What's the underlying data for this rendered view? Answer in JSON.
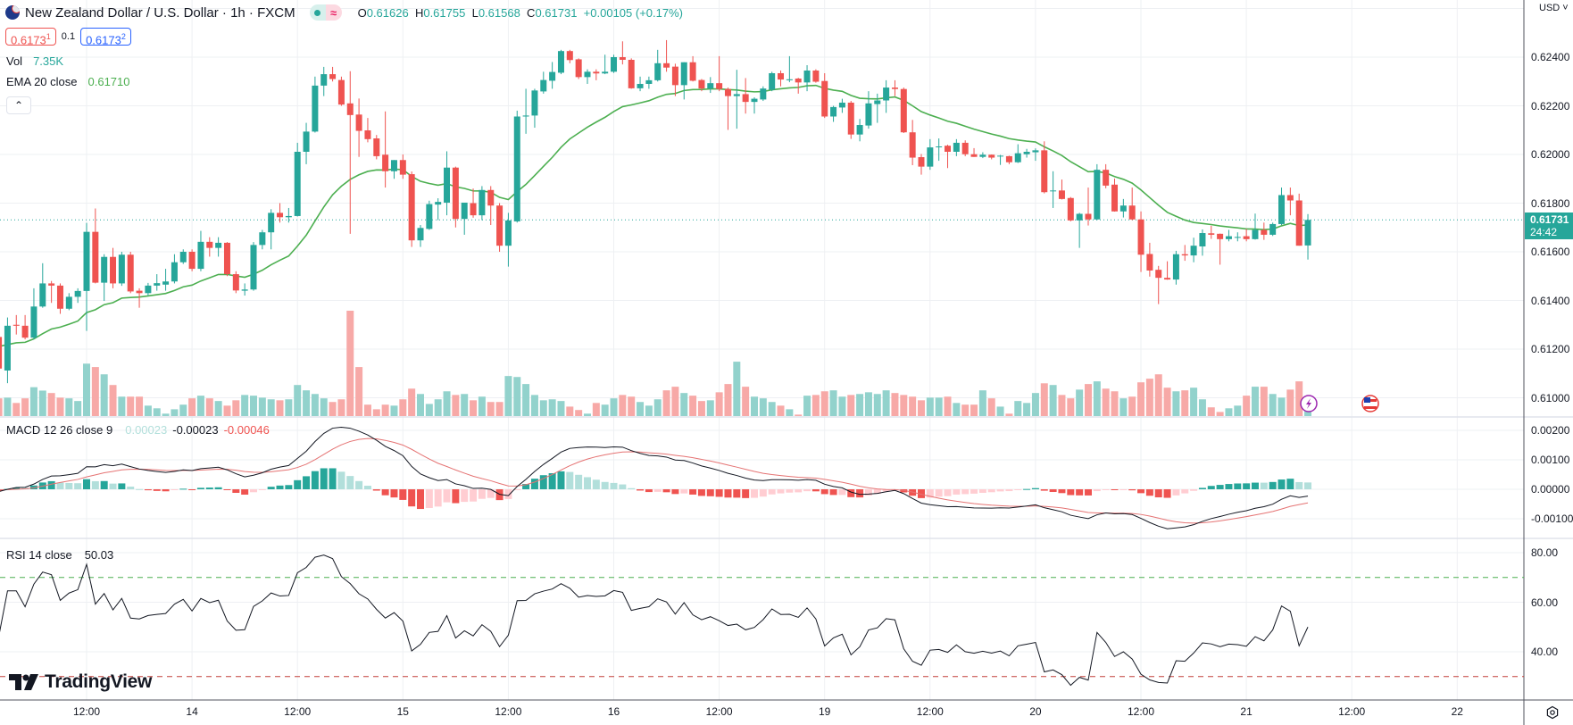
{
  "header": {
    "symbol_title": "New Zealand Dollar / U.S. Dollar · 1h · FXCM",
    "status_icon": "market-open-dot",
    "ohlc": {
      "o_label": "O",
      "o": "0.61626",
      "h_label": "H",
      "h": "0.61755",
      "l_label": "L",
      "l": "0.61568",
      "c_label": "C",
      "c": "0.61731",
      "change": "+0.00105 (+0.17%)"
    },
    "sell_price": "0.6173",
    "sell_sup": "1",
    "spread": "0.1",
    "buy_price": "0.6173",
    "buy_sup": "2"
  },
  "legends": {
    "vol_label": "Vol",
    "vol_value": "7.35K",
    "ema_label": "EMA 20 close",
    "ema_value": "0.61710",
    "macd_label": "MACD 12 26 close 9",
    "macd_hist": "0.00023",
    "macd_value": "-0.00023",
    "macd_signal": "-0.00046",
    "rsi_label": "RSI 14 close",
    "rsi_value": "50.03",
    "collapse_icon": "chevron-up-icon"
  },
  "price_axis": {
    "currency": "USD",
    "ticks": [
      "0.62400",
      "0.62200",
      "0.62000",
      "0.61800",
      "0.61600",
      "0.61400",
      "0.61200",
      "0.61000"
    ],
    "last_price": "0.61731",
    "countdown": "24:42"
  },
  "macd_axis": {
    "ticks": [
      "0.00200",
      "0.00100",
      "0.00000",
      "-0.00100"
    ]
  },
  "rsi_axis": {
    "ticks": [
      "80.00",
      "60.00",
      "40.00"
    ],
    "upper_band": 70,
    "lower_band": 30
  },
  "time_axis": {
    "labels": [
      "12:00",
      "14",
      "12:00",
      "15",
      "12:00",
      "16",
      "12:00",
      "19",
      "12:00",
      "20",
      "12:00",
      "21",
      "12:00",
      "22"
    ]
  },
  "branding": {
    "logo_text": "TradingView"
  },
  "colors": {
    "up": "#26a69a",
    "down": "#ef5350",
    "ema": "#4caf50",
    "macd": "#131722",
    "signal": "#e57373",
    "rsi": "#131722"
  },
  "chart_data": {
    "type": "candlestick",
    "title": "New Zealand Dollar / U.S. Dollar · 1h · FXCM",
    "ylim": [
      0.6095,
      0.6263
    ],
    "columns": [
      "open",
      "high",
      "low",
      "close",
      "volume_k"
    ],
    "indicators": [
      "EMA 20 close",
      "Vol",
      "MACD 12 26 close 9",
      "RSI 14 close"
    ],
    "bars": [
      [
        0.6125,
        0.6129,
        0.611,
        0.6112,
        7.3
      ],
      [
        0.61112,
        0.6133,
        0.6106,
        0.61296,
        7.6
      ],
      [
        0.613,
        0.6134,
        0.6126,
        0.61296,
        5.4
      ],
      [
        0.61296,
        0.6134,
        0.6124,
        0.61247,
        7.3
      ],
      [
        0.61247,
        0.6145,
        0.6124,
        0.61375,
        11.9
      ],
      [
        0.61375,
        0.61553,
        0.6137,
        0.6147,
        10.5
      ],
      [
        0.6147,
        0.6148,
        0.6139,
        0.61461,
        9.5
      ],
      [
        0.61461,
        0.6147,
        0.61345,
        0.61366,
        7.6
      ],
      [
        0.61366,
        0.6143,
        0.6136,
        0.61415,
        7.3
      ],
      [
        0.61415,
        0.6145,
        0.6139,
        0.61439,
        6.2
      ],
      [
        0.61439,
        0.61719,
        0.61275,
        0.61682,
        21.6
      ],
      [
        0.61682,
        0.61778,
        0.6147,
        0.61473,
        20.2
      ],
      [
        0.61473,
        0.6159,
        0.61398,
        0.61579,
        17.2
      ],
      [
        0.61579,
        0.61616,
        0.6145,
        0.6147,
        12.8
      ],
      [
        0.6147,
        0.616,
        0.6146,
        0.61588,
        8.0
      ],
      [
        0.61588,
        0.616,
        0.6143,
        0.61437,
        8.0
      ],
      [
        0.6144,
        0.6145,
        0.6137,
        0.6143,
        8.0
      ],
      [
        0.6143,
        0.61472,
        0.6142,
        0.61461,
        4.3
      ],
      [
        0.61461,
        0.61508,
        0.6144,
        0.61471,
        3.2
      ],
      [
        0.61465,
        0.6153,
        0.6144,
        0.61478,
        1.0
      ],
      [
        0.61478,
        0.6159,
        0.6147,
        0.61557,
        2.8
      ],
      [
        0.61557,
        0.6161,
        0.6155,
        0.616,
        4.7
      ],
      [
        0.616,
        0.6161,
        0.6152,
        0.6153,
        7.3
      ],
      [
        0.6153,
        0.61686,
        0.6152,
        0.61641,
        8.4
      ],
      [
        0.61641,
        0.6166,
        0.6158,
        0.61616,
        7.3
      ],
      [
        0.61616,
        0.6166,
        0.6158,
        0.61637,
        6.2
      ],
      [
        0.61637,
        0.6164,
        0.615,
        0.61508,
        4.3
      ],
      [
        0.61508,
        0.6152,
        0.6143,
        0.61441,
        6.5
      ],
      [
        0.6144,
        0.6147,
        0.6142,
        0.61445,
        8.7
      ],
      [
        0.61445,
        0.6164,
        0.6144,
        0.61628,
        8.4
      ],
      [
        0.61628,
        0.6169,
        0.6161,
        0.6168,
        7.6
      ],
      [
        0.6168,
        0.61775,
        0.6161,
        0.6176,
        6.9
      ],
      [
        0.6176,
        0.618,
        0.6172,
        0.61742,
        6.5
      ],
      [
        0.61742,
        0.6178,
        0.6172,
        0.61747,
        6.9
      ],
      [
        0.61747,
        0.62048,
        0.61745,
        0.62011,
        12.8
      ],
      [
        0.62011,
        0.6213,
        0.6196,
        0.62094,
        10.6
      ],
      [
        0.62094,
        0.6232,
        0.6209,
        0.62283,
        9.1
      ],
      [
        0.62283,
        0.6236,
        0.6224,
        0.6233,
        7.3
      ],
      [
        0.6233,
        0.6236,
        0.623,
        0.6231,
        5.8
      ],
      [
        0.62306,
        0.6232,
        0.622,
        0.62205,
        6.9
      ],
      [
        0.6221,
        0.62342,
        0.61674,
        0.62162,
        43.4
      ],
      [
        0.62164,
        0.6223,
        0.6199,
        0.62097,
        20.2
      ],
      [
        0.62099,
        0.6215,
        0.6205,
        0.62063,
        4.7
      ],
      [
        0.62066,
        0.6208,
        0.6198,
        0.61993,
        2.8
      ],
      [
        0.61999,
        0.62177,
        0.61864,
        0.61931,
        4.7
      ],
      [
        0.61931,
        0.61977,
        0.619,
        0.61977,
        4.3
      ],
      [
        0.61977,
        0.62,
        0.619,
        0.61917,
        6.9
      ],
      [
        0.61919,
        0.6193,
        0.6162,
        0.61647,
        11.3
      ],
      [
        0.61647,
        0.6171,
        0.6162,
        0.61698,
        9.1
      ],
      [
        0.61694,
        0.6181,
        0.6169,
        0.61796,
        5.0
      ],
      [
        0.61794,
        0.6182,
        0.6173,
        0.61805,
        6.9
      ],
      [
        0.61802,
        0.62013,
        0.6175,
        0.61946,
        10.2
      ],
      [
        0.61946,
        0.6195,
        0.617,
        0.61735,
        8.7
      ],
      [
        0.61735,
        0.618,
        0.6167,
        0.61802,
        9.1
      ],
      [
        0.618,
        0.6186,
        0.6174,
        0.6175,
        6.5
      ],
      [
        0.6175,
        0.6187,
        0.6173,
        0.61854,
        8.0
      ],
      [
        0.61854,
        0.6187,
        0.6171,
        0.6179,
        5.8
      ],
      [
        0.6179,
        0.618,
        0.616,
        0.61625,
        5.8
      ],
      [
        0.61625,
        0.6176,
        0.61539,
        0.61729,
        16.5
      ],
      [
        0.61725,
        0.6218,
        0.6172,
        0.62156,
        16.1
      ],
      [
        0.62156,
        0.6227,
        0.62085,
        0.6216,
        13.2
      ],
      [
        0.6216,
        0.6227,
        0.6211,
        0.62263,
        8.7
      ],
      [
        0.62259,
        0.6234,
        0.6225,
        0.62306,
        6.5
      ],
      [
        0.62303,
        0.6238,
        0.6227,
        0.62339,
        6.9
      ],
      [
        0.62336,
        0.6243,
        0.6233,
        0.62425,
        6.2
      ],
      [
        0.62425,
        0.6243,
        0.62375,
        0.62388,
        3.9
      ],
      [
        0.62391,
        0.62395,
        0.6231,
        0.62318,
        2.5
      ],
      [
        0.62318,
        0.6235,
        0.6229,
        0.6234,
        1.0
      ],
      [
        0.6234,
        0.6235,
        0.62305,
        0.62333,
        5.4
      ],
      [
        0.62333,
        0.6241,
        0.6233,
        0.6234,
        4.7
      ],
      [
        0.6234,
        0.6241,
        0.62335,
        0.624,
        7.3
      ],
      [
        0.624,
        0.62465,
        0.6237,
        0.62389,
        8.7
      ],
      [
        0.62389,
        0.62395,
        0.6227,
        0.62272,
        8.0
      ],
      [
        0.62272,
        0.6232,
        0.6226,
        0.6229,
        5.8
      ],
      [
        0.6229,
        0.6232,
        0.6227,
        0.62305,
        4.3
      ],
      [
        0.62305,
        0.6243,
        0.623,
        0.62375,
        6.9
      ],
      [
        0.62375,
        0.6247,
        0.6234,
        0.62357,
        10.6
      ],
      [
        0.62361,
        0.62373,
        0.6224,
        0.62285,
        12.1
      ],
      [
        0.62285,
        0.62379,
        0.62226,
        0.62379,
        9.5
      ],
      [
        0.62379,
        0.62404,
        0.623,
        0.62303,
        8.4
      ],
      [
        0.62306,
        0.6231,
        0.6226,
        0.62271,
        6.2
      ],
      [
        0.62271,
        0.62318,
        0.62253,
        0.62293,
        6.5
      ],
      [
        0.62293,
        0.62404,
        0.6226,
        0.62269,
        9.8
      ],
      [
        0.62269,
        0.62275,
        0.62101,
        0.6224,
        13.2
      ],
      [
        0.6224,
        0.62348,
        0.62106,
        0.62248,
        22.4
      ],
      [
        0.62248,
        0.62314,
        0.62168,
        0.62216,
        12.1
      ],
      [
        0.62216,
        0.62235,
        0.62168,
        0.62229,
        8.0
      ],
      [
        0.62226,
        0.6228,
        0.6222,
        0.62271,
        7.3
      ],
      [
        0.62266,
        0.6234,
        0.6226,
        0.62334,
        5.8
      ],
      [
        0.62334,
        0.62345,
        0.6228,
        0.62308,
        4.3
      ],
      [
        0.62305,
        0.62404,
        0.62297,
        0.62309,
        2.8
      ],
      [
        0.62312,
        0.62315,
        0.6225,
        0.62296,
        0.6
      ],
      [
        0.62296,
        0.62367,
        0.6226,
        0.62345,
        8.4
      ],
      [
        0.62345,
        0.6235,
        0.62295,
        0.62299,
        8.7
      ],
      [
        0.62302,
        0.62334,
        0.6215,
        0.62156,
        10.2
      ],
      [
        0.62156,
        0.622,
        0.62134,
        0.62195,
        10.6
      ],
      [
        0.62193,
        0.62229,
        0.62171,
        0.62213,
        8.0
      ],
      [
        0.62213,
        0.6222,
        0.62064,
        0.62082,
        8.7
      ],
      [
        0.62082,
        0.62146,
        0.62054,
        0.62121,
        9.1
      ],
      [
        0.62119,
        0.6226,
        0.62106,
        0.6221,
        9.8
      ],
      [
        0.62207,
        0.6225,
        0.6213,
        0.62222,
        9.1
      ],
      [
        0.62222,
        0.62305,
        0.62171,
        0.62275,
        10.6
      ],
      [
        0.62275,
        0.62305,
        0.6224,
        0.62269,
        9.5
      ],
      [
        0.62269,
        0.62275,
        0.62088,
        0.62091,
        8.7
      ],
      [
        0.62091,
        0.62142,
        0.61956,
        0.61987,
        8.0
      ],
      [
        0.61989,
        0.62002,
        0.61917,
        0.6195,
        6.5
      ],
      [
        0.6195,
        0.62063,
        0.61937,
        0.62029,
        7.6
      ],
      [
        0.62033,
        0.62066,
        0.61974,
        0.62033,
        7.6
      ],
      [
        0.62036,
        0.6204,
        0.61944,
        0.62011,
        8.0
      ],
      [
        0.62011,
        0.62063,
        0.61993,
        0.62048,
        5.4
      ],
      [
        0.62048,
        0.62058,
        0.61993,
        0.62001,
        4.7
      ],
      [
        0.62001,
        0.62026,
        0.6199,
        0.6199,
        4.7
      ],
      [
        0.6199,
        0.62009,
        0.61985,
        0.61999,
        10.6
      ],
      [
        0.61999,
        0.62,
        0.6198,
        0.61987,
        7.3
      ],
      [
        0.61993,
        0.61998,
        0.61957,
        0.61995,
        3.9
      ],
      [
        0.61993,
        0.61995,
        0.6196,
        0.61968,
        1.0
      ],
      [
        0.61968,
        0.62042,
        0.61965,
        0.62005,
        6.2
      ],
      [
        0.62001,
        0.62023,
        0.61987,
        0.62011,
        5.4
      ],
      [
        0.62009,
        0.62025,
        0.61974,
        0.62017,
        9.5
      ],
      [
        0.62017,
        0.62054,
        0.6184,
        0.61845,
        13.5
      ],
      [
        0.6185,
        0.61931,
        0.6178,
        0.61852,
        12.8
      ],
      [
        0.61852,
        0.61897,
        0.61815,
        0.61817,
        8.7
      ],
      [
        0.61821,
        0.61825,
        0.61725,
        0.61729,
        7.3
      ],
      [
        0.61729,
        0.6176,
        0.61616,
        0.61756,
        10.9
      ],
      [
        0.61756,
        0.61864,
        0.61708,
        0.61733,
        13.2
      ],
      [
        0.61733,
        0.6196,
        0.6173,
        0.61937,
        14.3
      ],
      [
        0.61937,
        0.6196,
        0.61861,
        0.61872,
        11.3
      ],
      [
        0.61876,
        0.61901,
        0.61765,
        0.61766,
        10.2
      ],
      [
        0.61766,
        0.61817,
        0.61741,
        0.6179,
        7.3
      ],
      [
        0.6179,
        0.61864,
        0.6173,
        0.61733,
        8.0
      ],
      [
        0.61733,
        0.61766,
        0.61517,
        0.61588,
        13.9
      ],
      [
        0.61591,
        0.61637,
        0.61498,
        0.61523,
        15.4
      ],
      [
        0.61526,
        0.61542,
        0.61385,
        0.61493,
        17.2
      ],
      [
        0.61493,
        0.61561,
        0.61485,
        0.61486,
        11.7
      ],
      [
        0.61486,
        0.61604,
        0.61465,
        0.6159,
        10.2
      ],
      [
        0.6159,
        0.61628,
        0.61563,
        0.61585,
        10.6
      ],
      [
        0.61585,
        0.61658,
        0.61557,
        0.61625,
        11.7
      ],
      [
        0.61622,
        0.61692,
        0.61584,
        0.61677,
        6.9
      ],
      [
        0.61676,
        0.61707,
        0.61653,
        0.6167,
        3.6
      ],
      [
        0.61674,
        0.61675,
        0.61547,
        0.61652,
        1.7
      ],
      [
        0.61652,
        0.6169,
        0.61643,
        0.61664,
        3.2
      ],
      [
        0.61661,
        0.6168,
        0.61643,
        0.61661,
        4.3
      ],
      [
        0.61664,
        0.61694,
        0.61643,
        0.61652,
        8.4
      ],
      [
        0.61652,
        0.61757,
        0.6165,
        0.6169,
        12.1
      ],
      [
        0.6169,
        0.6172,
        0.61649,
        0.6167,
        12.1
      ],
      [
        0.6167,
        0.6172,
        0.61665,
        0.61714,
        9.1
      ],
      [
        0.61714,
        0.61864,
        0.6171,
        0.61833,
        7.6
      ],
      [
        0.61833,
        0.61864,
        0.6175,
        0.61811,
        10.9
      ],
      [
        0.61811,
        0.61839,
        0.61625,
        0.61625,
        14.3
      ],
      [
        0.61626,
        0.61755,
        0.61568,
        0.61731,
        7.35
      ]
    ]
  }
}
